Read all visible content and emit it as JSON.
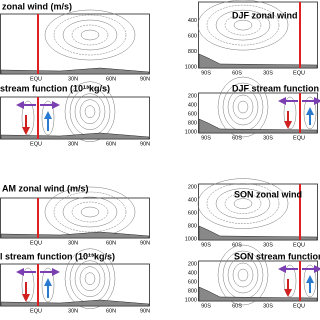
{
  "panels": [
    {
      "title": "zonal wind (m/s)",
      "xticks": [
        "EQU",
        "30N",
        "60N",
        "90N"
      ],
      "yticks": []
    },
    {
      "title": "stream function (10¹³kg/s)",
      "xticks": [
        "EQU",
        "30N",
        "60N",
        "90N"
      ],
      "yticks": []
    },
    {
      "title": "AM zonal wind (m/s)",
      "xticks": [
        "EQU",
        "30N",
        "60N",
        "90N"
      ],
      "yticks": []
    },
    {
      "title": "l stream function (10¹³kg/s)",
      "xticks": [
        "EQU",
        "30N",
        "60N",
        "90N"
      ],
      "yticks": []
    },
    {
      "title": "DJF zonal wind",
      "xticks": [
        "90S",
        "60S",
        "30S",
        "EQU"
      ],
      "yticks": [
        400,
        600,
        800,
        1000
      ]
    },
    {
      "title": "DJF stream function",
      "xticks": [
        "90S",
        "60S",
        "30S",
        "EQU"
      ],
      "yticks": [
        200,
        400,
        600,
        800,
        1000
      ]
    },
    {
      "title": "SON zonal wind",
      "xticks": [
        "90S",
        "60S",
        "30S",
        "EQU"
      ],
      "yticks": [
        200,
        400,
        600,
        800,
        1000
      ]
    },
    {
      "title": "SON stream function",
      "xticks": [
        "90S",
        "60S",
        "30S",
        "EQU"
      ],
      "yticks": [
        200,
        400,
        600,
        800,
        1000
      ]
    }
  ]
}
